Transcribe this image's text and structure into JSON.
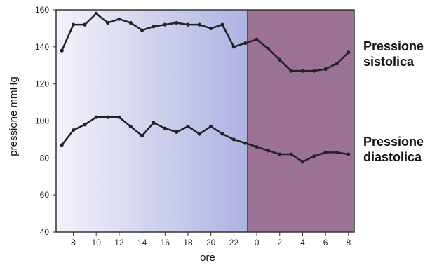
{
  "chart_data": {
    "type": "line",
    "xlabel": "ore",
    "ylabel": "pressione mmHg",
    "ylim": [
      40,
      160
    ],
    "yticks": [
      "40",
      "60",
      "80",
      "100",
      "120",
      "140",
      "160"
    ],
    "xticks": [
      "8",
      "10",
      "12",
      "14",
      "16",
      "18",
      "20",
      "22",
      "0",
      "2",
      "4",
      "6",
      "8"
    ],
    "xlim_hours": [
      6.5,
      32.5
    ],
    "night_band_hours": [
      23.2,
      32.5
    ],
    "colors": {
      "day_band_light": "#f3f2fa",
      "day_band_dark": "#aeb3e2",
      "night_band": "#9c7294",
      "line": "#222222",
      "frame": "#333333"
    },
    "series": [
      {
        "name": "Pressione sistolica",
        "label_lines": [
          "Pressione",
          "sistolica"
        ],
        "x": [
          7,
          8,
          9,
          10,
          11,
          12,
          13,
          14,
          15,
          16,
          17,
          18,
          19,
          20,
          21,
          22,
          23,
          24,
          25,
          26,
          27,
          28,
          29,
          30,
          31,
          32
        ],
        "values": [
          138,
          152,
          152,
          158,
          153,
          155,
          153,
          149,
          151,
          152,
          153,
          152,
          152,
          150,
          152,
          140,
          142,
          144,
          139,
          133,
          127,
          127,
          127,
          128,
          131,
          137
        ]
      },
      {
        "name": "Pressione diastolica",
        "label_lines": [
          "Pressione",
          "diastolica"
        ],
        "x": [
          7,
          8,
          9,
          10,
          11,
          12,
          13,
          14,
          15,
          16,
          17,
          18,
          19,
          20,
          21,
          22,
          23,
          24,
          25,
          26,
          27,
          28,
          29,
          30,
          31,
          32
        ],
        "values": [
          87,
          95,
          98,
          102,
          102,
          102,
          97,
          92,
          99,
          96,
          94,
          97,
          93,
          97,
          93,
          90,
          88,
          86,
          84,
          82,
          82,
          78,
          81,
          83,
          83,
          82
        ]
      }
    ]
  }
}
